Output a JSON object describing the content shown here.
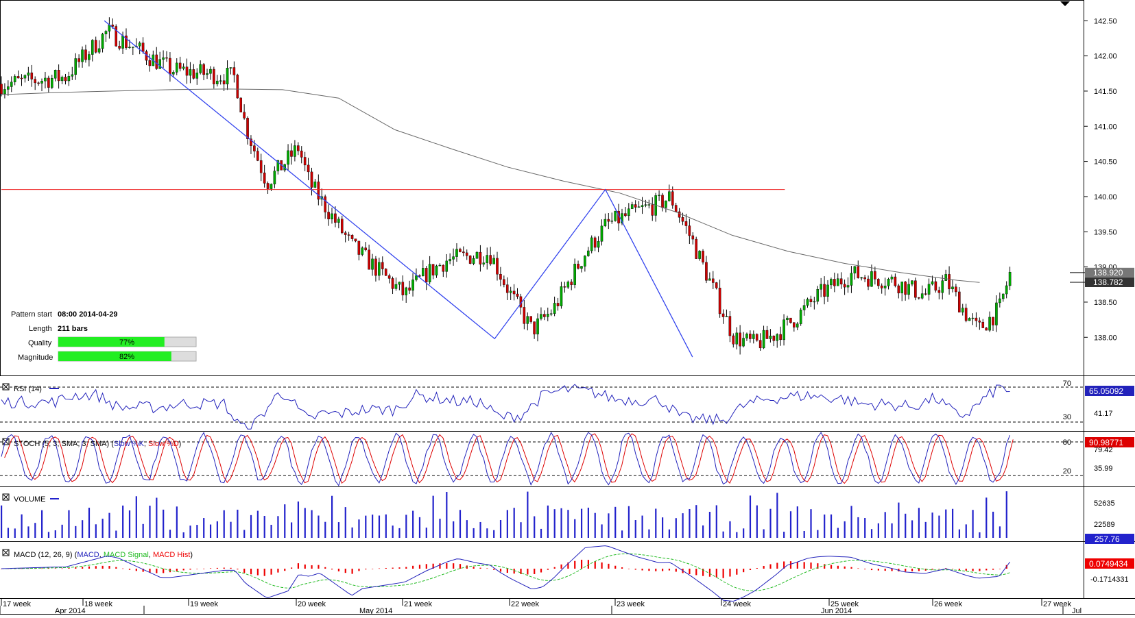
{
  "chart_data": {
    "type": "candlestick",
    "main": {
      "y_ticks": [
        "142.50",
        "142.00",
        "141.50",
        "141.00",
        "140.50",
        "140.00",
        "139.50",
        "139.00",
        "138.50",
        "138.00"
      ],
      "ylim": [
        137.73,
        142.6
      ],
      "price_labels": [
        {
          "value": "138.920",
          "color": "#ffffff"
        },
        {
          "value": "138.782",
          "color": "#ffffff"
        }
      ],
      "pattern_line_price": 140.1,
      "pattern_points": [
        {
          "bar": 0.0,
          "price": 142.5
        },
        {
          "bar": 0.43,
          "price": 137.98
        },
        {
          "bar": 0.552,
          "price": 140.1
        },
        {
          "bar": 0.648,
          "price": 137.72
        }
      ],
      "ma_points": [
        [
          0,
          141.45
        ],
        [
          0.05,
          141.48
        ],
        [
          0.1,
          141.5
        ],
        [
          0.15,
          141.52
        ],
        [
          0.2,
          141.53
        ],
        [
          0.25,
          141.52
        ],
        [
          0.3,
          141.4
        ],
        [
          0.35,
          140.95
        ],
        [
          0.4,
          140.68
        ],
        [
          0.45,
          140.42
        ],
        [
          0.5,
          140.22
        ],
        [
          0.55,
          140.05
        ],
        [
          0.6,
          139.78
        ],
        [
          0.65,
          139.45
        ],
        [
          0.7,
          139.22
        ],
        [
          0.75,
          139.05
        ],
        [
          0.8,
          138.92
        ],
        [
          0.85,
          138.81
        ],
        [
          0.87,
          138.78
        ]
      ],
      "info": {
        "pattern_start_label": "Pattern start",
        "pattern_start_value": "08:00 2014-04-29",
        "length_label": "Length",
        "length_value": "211 bars",
        "quality_label": "Quality",
        "quality_value": "77%",
        "quality_fraction": 0.77,
        "magnitude_label": "Magnitude",
        "magnitude_value": "82%",
        "magnitude_fraction": 0.82
      }
    },
    "rsi": {
      "title": "RSI (14)",
      "levels": [
        "70",
        "30"
      ],
      "value_labels": [
        "65.05092",
        "41.17"
      ]
    },
    "stoch": {
      "title_prefix": "STOCH (5, 3, SMA, 3, SMA) (",
      "slow_k": "Slow %K",
      "slow_d": "Slow %D",
      "title_suffix": ")",
      "levels": [
        "80",
        "20"
      ],
      "value_labels": [
        "90.98771",
        "79.42",
        "35.99"
      ]
    },
    "volume": {
      "title": "VOLUME",
      "ticks": [
        "52635",
        "22589"
      ],
      "value_label": "257.76"
    },
    "macd": {
      "title_prefix": "MACD (12, 26, 9) (",
      "macd": "MACD",
      "signal": "MACD Signal",
      "hist": "MACD Hist",
      "title_suffix": ")",
      "value_labels": [
        "0.0749434",
        "-0.1714331"
      ]
    },
    "x_axis": {
      "weeks": [
        "17 week",
        "18 week",
        "19 week",
        "20 week",
        "21 week",
        "22 week",
        "23 week",
        "24 week",
        "25 week",
        "26 week",
        "27 week"
      ],
      "months": [
        "Apr 2014",
        "May 2014",
        "Jun 2014",
        "Jul"
      ]
    },
    "colors": {
      "up": "#00aa00",
      "down": "#cc0000",
      "pattern": "#3344ee",
      "ma": "#666666",
      "level": "#ee2222",
      "rsi": "#2222bb",
      "volume": "#2222cc",
      "macd_signal": "#22bb22",
      "hist": "#ee0000"
    }
  }
}
